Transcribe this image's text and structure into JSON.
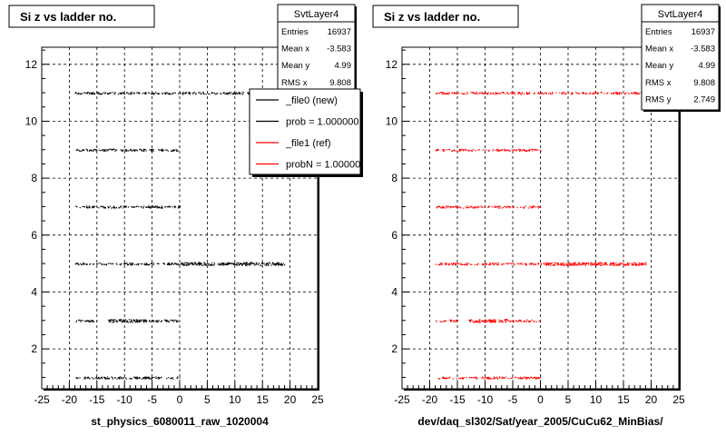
{
  "chart_data": [
    {
      "type": "scatter",
      "title": "Si z vs ladder no.",
      "xlabel": "st_physics_6080011_raw_1020004",
      "ylabel": "",
      "xlim": [
        -25,
        25
      ],
      "ylim": [
        0.6,
        12.6
      ],
      "xticks": [
        -25,
        -20,
        -15,
        -10,
        -5,
        0,
        5,
        10,
        15,
        20,
        25
      ],
      "yticks": [
        2,
        4,
        6,
        8,
        10,
        12
      ],
      "grid": true,
      "stats": {
        "name": "SvtLayer4",
        "rows": [
          {
            "label": "Entries",
            "value": "16937"
          },
          {
            "label": "Mean x",
            "value": "-3.583"
          },
          {
            "label": "Mean y",
            "value": "4.99"
          },
          {
            "label": "RMS x",
            "value": "9.808"
          }
        ]
      },
      "legend": [
        {
          "label": "_file0 (new)",
          "color": "#000000"
        },
        {
          "label": "prob = 1.000000",
          "color": "#000000"
        },
        {
          "label": "_file1 (ref)",
          "color": "#ff0000"
        },
        {
          "label": "probN = 1.000000",
          "color": "#ff0000"
        }
      ],
      "series": [
        {
          "color": "#000000",
          "bands": [
            {
              "y": 1.0,
              "x0": -19,
              "x1": 0,
              "density": 0.5
            },
            {
              "y": 3.0,
              "x0": -19,
              "x1": -15,
              "density": 0.5
            },
            {
              "y": 3.0,
              "x0": -13,
              "x1": -6,
              "density": 1.0
            },
            {
              "y": 3.0,
              "x0": -6,
              "x1": 0,
              "density": 0.5
            },
            {
              "y": 5.0,
              "x0": -19,
              "x1": 0,
              "density": 0.5
            },
            {
              "y": 5.0,
              "x0": 0,
              "x1": 19,
              "density": 1.0
            },
            {
              "y": 7.0,
              "x0": -19,
              "x1": 0,
              "density": 0.5
            },
            {
              "y": 9.0,
              "x0": -19,
              "x1": 0,
              "density": 0.5
            },
            {
              "y": 11.0,
              "x0": -19,
              "x1": 19,
              "density": 0.5
            }
          ]
        }
      ]
    },
    {
      "type": "scatter",
      "title": "Si z vs ladder no.",
      "xlabel": "dev/daq_sl302/Sat/year_2005/CuCu62_MinBias/",
      "ylabel": "",
      "xlim": [
        -25,
        25
      ],
      "ylim": [
        0.6,
        12.6
      ],
      "xticks": [
        -25,
        -20,
        -15,
        -10,
        -5,
        0,
        5,
        10,
        15,
        20,
        25
      ],
      "yticks": [
        2,
        4,
        6,
        8,
        10,
        12
      ],
      "grid": true,
      "stats": {
        "name": "SvtLayer4",
        "rows": [
          {
            "label": "Entries",
            "value": "16937"
          },
          {
            "label": "Mean x",
            "value": "-3.583"
          },
          {
            "label": "Mean y",
            "value": "4.99"
          },
          {
            "label": "RMS x",
            "value": "9.808"
          },
          {
            "label": "RMS y",
            "value": "2.749"
          }
        ]
      },
      "legend": [],
      "series": [
        {
          "color": "#ff0000",
          "bands": [
            {
              "y": 1.0,
              "x0": -19,
              "x1": 0,
              "density": 0.5
            },
            {
              "y": 3.0,
              "x0": -19,
              "x1": -15,
              "density": 0.5
            },
            {
              "y": 3.0,
              "x0": -13,
              "x1": -6,
              "density": 1.0
            },
            {
              "y": 3.0,
              "x0": -6,
              "x1": 0,
              "density": 0.5
            },
            {
              "y": 5.0,
              "x0": -19,
              "x1": 0,
              "density": 0.5
            },
            {
              "y": 5.0,
              "x0": 0,
              "x1": 19,
              "density": 1.0
            },
            {
              "y": 7.0,
              "x0": -19,
              "x1": 0,
              "density": 0.5
            },
            {
              "y": 9.0,
              "x0": -19,
              "x1": 0,
              "density": 0.5
            },
            {
              "y": 11.0,
              "x0": -19,
              "x1": 19,
              "density": 0.5
            }
          ]
        }
      ]
    }
  ]
}
